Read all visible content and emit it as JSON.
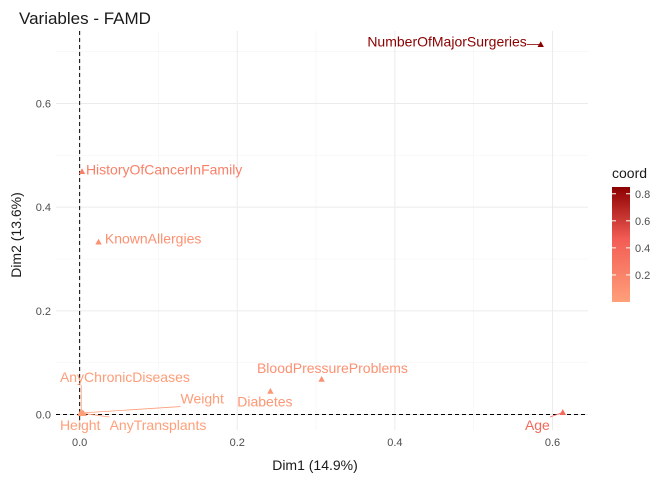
{
  "chart_data": {
    "type": "scatter",
    "title": "Variables - FAMD",
    "xlabel": "Dim1 (14.9%)",
    "ylabel": "Dim2 (13.6%)",
    "xlim": [
      -0.03,
      0.645
    ],
    "ylim": [
      -0.03,
      0.74
    ],
    "x_ticks": [
      "0.0",
      "0.2",
      "0.4",
      "0.6"
    ],
    "y_ticks": [
      "0.0",
      "0.2",
      "0.4",
      "0.6"
    ],
    "grid": true,
    "reference_lines": {
      "x": 0,
      "y": 0,
      "style": "dashed"
    },
    "points": [
      {
        "label": "NumberOfMajorSurgeries",
        "x": 0.585,
        "y": 0.714,
        "coord": 0.85,
        "shape": "triangle",
        "label_x": 0.365,
        "label_y": 0.71
      },
      {
        "label": "HistoryOfCancerInFamily",
        "x": 0.003,
        "y": 0.469,
        "coord": 0.22,
        "shape": "triangle",
        "label_x": 0.008,
        "label_y": 0.463
      },
      {
        "label": "KnownAllergies",
        "x": 0.024,
        "y": 0.333,
        "coord": 0.11,
        "shape": "triangle",
        "label_x": 0.032,
        "label_y": 0.33
      },
      {
        "label": "BloodPressureProblems",
        "x": 0.307,
        "y": 0.068,
        "coord": 0.1,
        "shape": "triangle",
        "label_x": 0.225,
        "label_y": 0.08
      },
      {
        "label": "Diabetes",
        "x": 0.242,
        "y": 0.045,
        "coord": 0.06,
        "shape": "triangle",
        "label_x": 0.2,
        "label_y": 0.015
      },
      {
        "label": "AnyChronicDiseases",
        "x": 0.002,
        "y": 0.005,
        "coord": 0.02,
        "shape": "triangle",
        "label_x": -0.025,
        "label_y": 0.063
      },
      {
        "label": "Weight",
        "x": 0.004,
        "y": 0.003,
        "coord": 0.02,
        "shape": "triangle",
        "label_x": 0.128,
        "label_y": 0.021
      },
      {
        "label": "Height",
        "x": 0.001,
        "y": 0.002,
        "coord": 0.01,
        "shape": "triangle",
        "label_x": -0.025,
        "label_y": -0.03
      },
      {
        "label": "AnyTransplants",
        "x": 0.005,
        "y": 0.002,
        "coord": 0.01,
        "shape": "triangle",
        "label_x": 0.038,
        "label_y": -0.03
      },
      {
        "label": "Age",
        "x": 0.613,
        "y": 0.004,
        "coord": 0.38,
        "shape": "triangle",
        "label_x": 0.565,
        "label_y": -0.03
      }
    ],
    "legend": {
      "title": "coord",
      "placement": "right",
      "type": "gradient",
      "range": [
        0.0,
        0.85
      ],
      "ticks": [
        "0.2",
        "0.4",
        "0.6",
        "0.8"
      ],
      "colors": {
        "low": "#ffa07a",
        "mid": "#f25c54",
        "high": "#8b0000"
      }
    }
  }
}
